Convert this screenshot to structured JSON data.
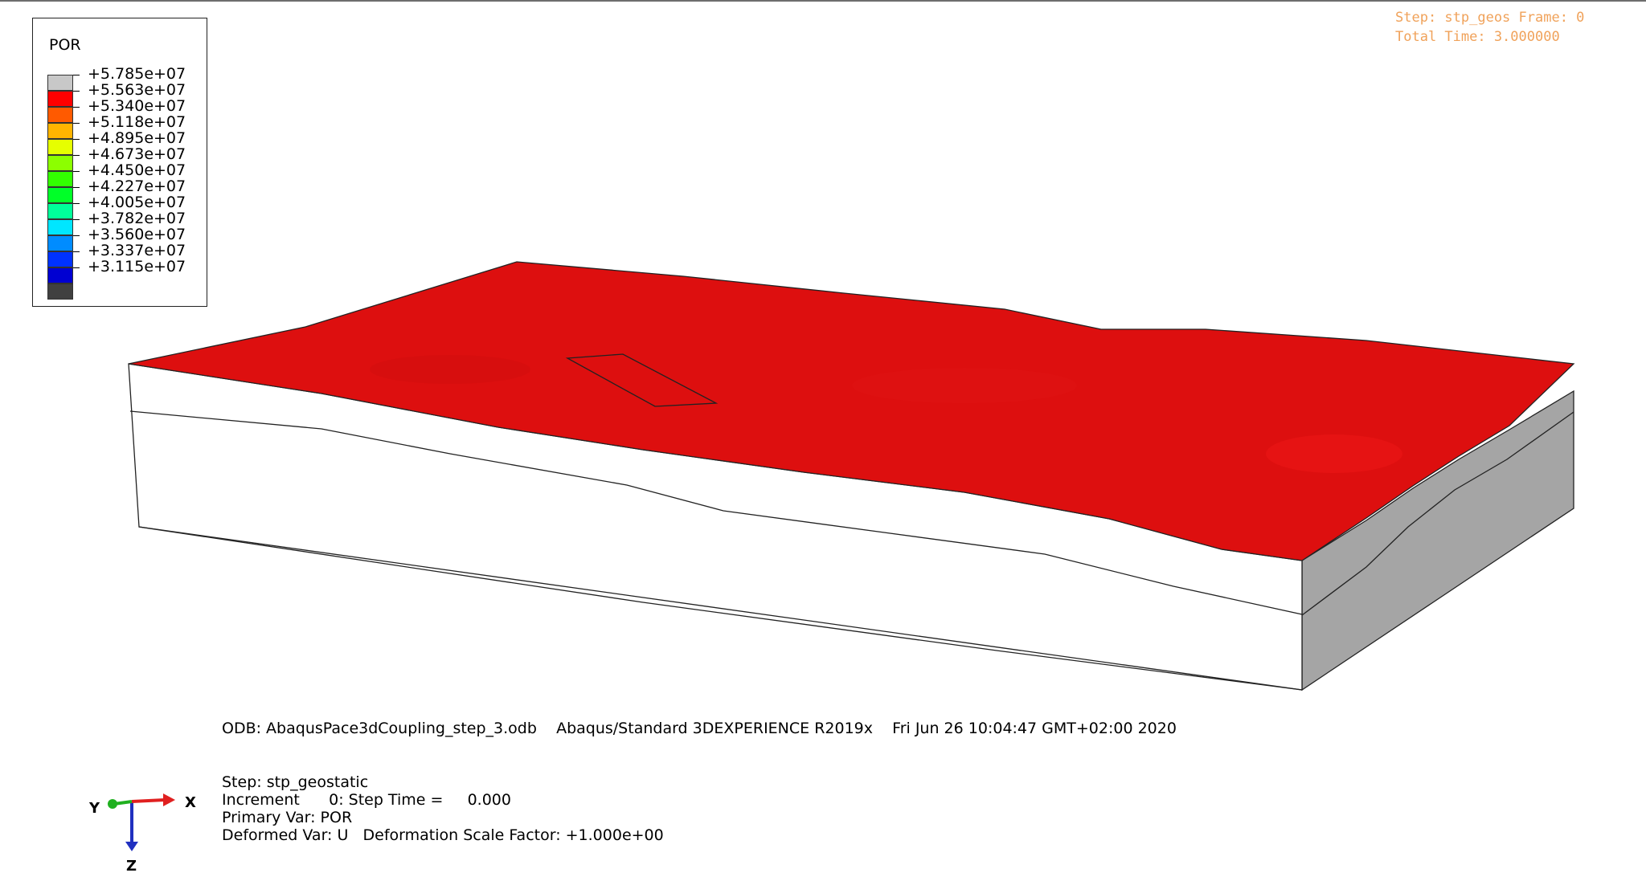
{
  "legend": {
    "title": "POR",
    "entries": [
      {
        "label": "+5.785e+07",
        "color": "#c8c8c8"
      },
      {
        "label": "+5.563e+07",
        "color": "#ff0000"
      },
      {
        "label": "+5.340e+07",
        "color": "#ff5a00"
      },
      {
        "label": "+5.118e+07",
        "color": "#ffb400"
      },
      {
        "label": "+4.895e+07",
        "color": "#e6ff00"
      },
      {
        "label": "+4.673e+07",
        "color": "#8cff00"
      },
      {
        "label": "+4.450e+07",
        "color": "#32ff00"
      },
      {
        "label": "+4.227e+07",
        "color": "#00ff28"
      },
      {
        "label": "+4.005e+07",
        "color": "#00ff9a"
      },
      {
        "label": "+3.782e+07",
        "color": "#00e6ff"
      },
      {
        "label": "+3.560e+07",
        "color": "#008cff"
      },
      {
        "label": "+3.337e+07",
        "color": "#0032ff"
      },
      {
        "label": "+3.115e+07",
        "color": "#0000d2"
      },
      {
        "label": "",
        "color": "#404040"
      }
    ]
  },
  "step_overlay": {
    "line1": "Step: stp_geos Frame: 0",
    "line2": "Total Time: 3.000000",
    "color": "#f0a25a"
  },
  "odb_line": "ODB: AbaqusPace3dCoupling_step_3.odb    Abaqus/Standard 3DEXPERIENCE R2019x    Fri Jun 26 10:04:47 GMT+02:00 2020",
  "info": {
    "step": "Step: stp_geostatic",
    "increment": "Increment      0: Step Time =     0.000",
    "primary_var": "Primary Var: POR",
    "deformed_var": "Deformed Var: U   Deformation Scale Factor: +1.000e+00"
  },
  "triad": {
    "x": "X",
    "y": "Y",
    "z": "Z"
  },
  "colors": {
    "surface": "#dd0f0f",
    "side_front": "#ffffff",
    "side_right": "#a5a5a5",
    "x_axis": "#e02020",
    "y_axis": "#20b020",
    "z_axis": "#2030c0"
  }
}
